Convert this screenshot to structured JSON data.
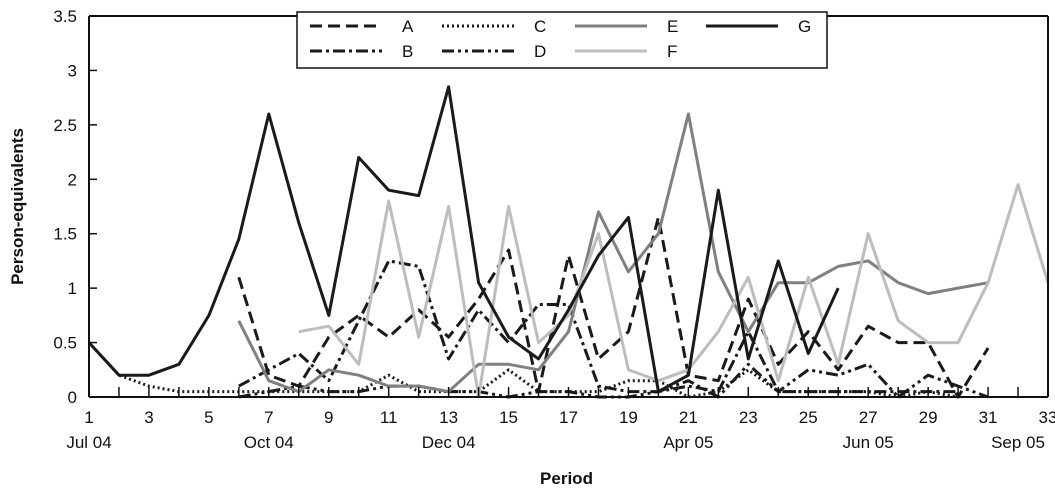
{
  "chart_data": {
    "type": "line",
    "title": "",
    "xlabel": "Period",
    "ylabel": "Person-equivalents",
    "x": [
      1,
      2,
      3,
      4,
      5,
      6,
      7,
      8,
      9,
      10,
      11,
      12,
      13,
      14,
      15,
      16,
      17,
      18,
      19,
      20,
      21,
      22,
      23,
      24,
      25,
      26,
      27,
      28,
      29,
      30,
      31,
      32,
      33
    ],
    "xlim": [
      1,
      33
    ],
    "ylim": [
      0,
      3.5
    ],
    "x_tick_labels": [
      "1",
      "3",
      "5",
      "7",
      "9",
      "11",
      "13",
      "15",
      "17",
      "19",
      "21",
      "23",
      "25",
      "27",
      "29",
      "31",
      "33"
    ],
    "y_tick_labels": [
      "0",
      "0.5",
      "1",
      "1.5",
      "2",
      "2.5",
      "3",
      "3.5"
    ],
    "y_ticks": [
      0,
      0.5,
      1,
      1.5,
      2,
      2.5,
      3,
      3.5
    ],
    "date_labels": [
      {
        "x": 1,
        "label": "Jul 04"
      },
      {
        "x": 7,
        "label": "Oct 04"
      },
      {
        "x": 13,
        "label": "Dec 04"
      },
      {
        "x": 21,
        "label": "Apr 05"
      },
      {
        "x": 27,
        "label": "Jun 05"
      },
      {
        "x": 32,
        "label": "Sep 05"
      }
    ],
    "legend_position": "top-center",
    "grid": false,
    "series": [
      {
        "name": "A",
        "color": "#1a1a1a",
        "dash": "dashed",
        "values": [
          null,
          null,
          null,
          null,
          null,
          1.1,
          0.2,
          0.1,
          0.55,
          0.75,
          0.55,
          0.8,
          0.55,
          0.9,
          1.35,
          0.05,
          1.3,
          0.35,
          0.6,
          1.65,
          0.2,
          0.15,
          0.9,
          0.3,
          0.6,
          0.25,
          0.65,
          0.5,
          0.5,
          0.0,
          0.45,
          null,
          null
        ]
      },
      {
        "name": "B",
        "color": "#1a1a1a",
        "dash": "dashdot",
        "values": [
          null,
          null,
          null,
          null,
          null,
          0.1,
          0.25,
          0.4,
          0.15,
          0.7,
          1.25,
          1.2,
          0.35,
          0.8,
          0.5,
          0.85,
          0.85,
          0.1,
          0.05,
          0.05,
          0.1,
          0.05,
          0.6,
          0.05,
          0.05,
          0.05,
          0.05,
          0.05,
          0.05,
          0.05,
          null,
          null,
          null
        ]
      },
      {
        "name": "C",
        "color": "#1a1a1a",
        "dash": "dotted",
        "values": [
          0.5,
          0.2,
          0.1,
          0.05,
          0.05,
          0.05,
          0.05,
          0.05,
          0.05,
          0.05,
          0.2,
          0.05,
          0.05,
          0.05,
          0.25,
          0.05,
          0.05,
          0.05,
          0.15,
          0.15,
          0.0,
          0.05,
          0.25,
          0.05,
          0.05,
          0.05,
          0.05,
          0.0,
          0.05,
          0.0,
          null,
          null,
          null
        ]
      },
      {
        "name": "D",
        "color": "#1a1a1a",
        "dash": "dashdotdot",
        "values": [
          null,
          null,
          null,
          null,
          null,
          0.0,
          0.05,
          0.1,
          0.05,
          0.05,
          0.1,
          0.1,
          0.05,
          0.05,
          0.0,
          0.05,
          0.05,
          0.0,
          0.0,
          0.05,
          0.15,
          0.0,
          0.3,
          0.05,
          0.25,
          0.2,
          0.3,
          0.0,
          0.2,
          0.1,
          0.0,
          null,
          null
        ]
      },
      {
        "name": "E",
        "color": "#808080",
        "dash": "solid",
        "values": [
          null,
          null,
          null,
          null,
          null,
          0.7,
          0.15,
          0.05,
          0.25,
          0.2,
          0.1,
          0.1,
          0.05,
          0.3,
          0.3,
          0.25,
          0.6,
          1.7,
          1.15,
          1.5,
          2.6,
          1.15,
          0.6,
          1.05,
          1.05,
          1.2,
          1.25,
          1.05,
          0.95,
          1.0,
          1.05,
          null,
          null
        ]
      },
      {
        "name": "F",
        "color": "#bdbdbd",
        "dash": "solid",
        "values": [
          null,
          null,
          null,
          null,
          null,
          null,
          null,
          0.6,
          0.65,
          0.3,
          1.8,
          0.55,
          1.75,
          0.0,
          1.75,
          0.5,
          0.75,
          1.5,
          0.25,
          0.15,
          0.25,
          0.6,
          1.1,
          0.15,
          1.1,
          0.3,
          1.5,
          0.7,
          0.5,
          0.5,
          1.05,
          1.95,
          1.05
        ]
      },
      {
        "name": "G",
        "color": "#1a1a1a",
        "dash": "solid",
        "values": [
          0.5,
          0.2,
          0.2,
          0.3,
          0.75,
          1.45,
          2.6,
          1.6,
          0.75,
          2.2,
          1.9,
          1.85,
          2.85,
          1.05,
          0.55,
          0.35,
          0.8,
          1.3,
          1.65,
          0.05,
          0.2,
          1.9,
          0.35,
          1.25,
          0.4,
          1.0,
          null,
          null,
          null,
          null,
          null,
          null,
          null
        ]
      }
    ]
  }
}
